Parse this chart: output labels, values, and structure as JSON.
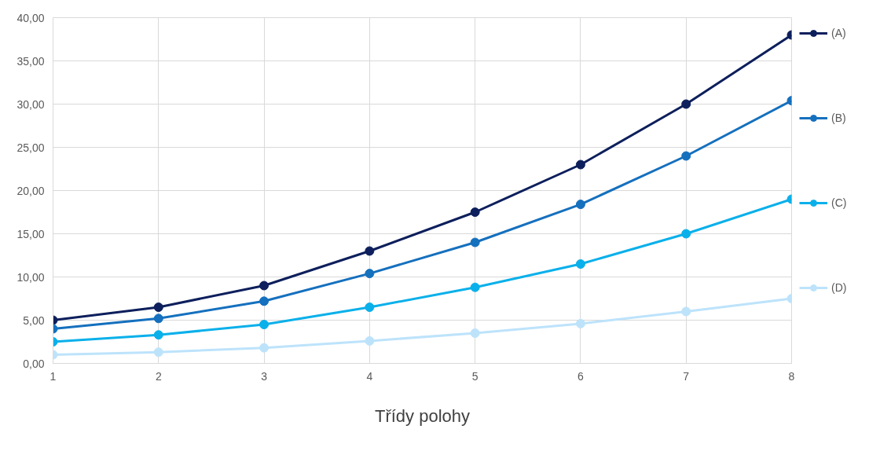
{
  "chart_data": {
    "type": "line",
    "xlabel": "Třídy polohy",
    "x": [
      1,
      2,
      3,
      4,
      5,
      6,
      7,
      8
    ],
    "series": [
      {
        "name": "(A)",
        "color": "#0d1f5c",
        "values": [
          5,
          6.5,
          9,
          13,
          17.5,
          23,
          30,
          38
        ]
      },
      {
        "name": "(B)",
        "color": "#1570be",
        "values": [
          4,
          5.2,
          7.2,
          10.4,
          14,
          18.4,
          24,
          30.4
        ]
      },
      {
        "name": "(C)",
        "color": "#0ab0ea",
        "values": [
          2.5,
          3.3,
          4.5,
          6.5,
          8.8,
          11.5,
          15,
          19
        ]
      },
      {
        "name": "(D)",
        "color": "#bde3fb",
        "values": [
          1,
          1.3,
          1.8,
          2.6,
          3.5,
          4.6,
          6,
          7.5
        ]
      }
    ],
    "xlim": [
      1,
      8
    ],
    "xticks": [
      1,
      2,
      3,
      4,
      5,
      6,
      7,
      8
    ],
    "ylim": [
      0,
      40
    ],
    "yticks": [
      {
        "value": 0,
        "label": "0,00"
      },
      {
        "value": 5,
        "label": "5,00"
      },
      {
        "value": 10,
        "label": "10,00"
      },
      {
        "value": 15,
        "label": "15,00"
      },
      {
        "value": 20,
        "label": "20,00"
      },
      {
        "value": 25,
        "label": "25,00"
      },
      {
        "value": 30,
        "label": "30,00"
      },
      {
        "value": 35,
        "label": "35,00"
      },
      {
        "value": 40,
        "label": "40,00"
      }
    ],
    "grid": true,
    "legend": "right",
    "marker": "circle",
    "line_style": "solid"
  }
}
